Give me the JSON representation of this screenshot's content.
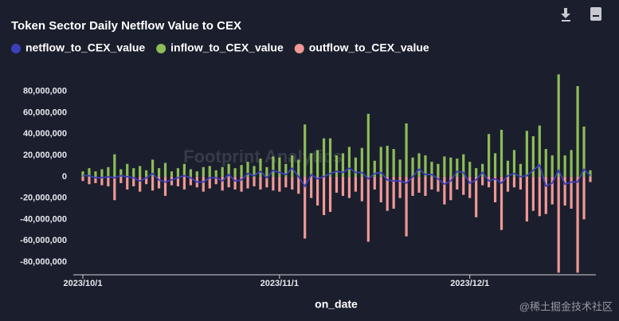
{
  "chart_data": {
    "type": "bar-line",
    "title": "Token Sector Daily Netflow Value to CEX",
    "xlabel": "on_date",
    "watermark": "Footprint Analytics",
    "credit": "@稀土掘金技术社区",
    "x": [
      "2023/10/1",
      "2023/10/2",
      "2023/10/3",
      "2023/10/4",
      "2023/10/5",
      "2023/10/6",
      "2023/10/7",
      "2023/10/8",
      "2023/10/9",
      "2023/10/10",
      "2023/10/11",
      "2023/10/12",
      "2023/10/13",
      "2023/10/14",
      "2023/10/15",
      "2023/10/16",
      "2023/10/17",
      "2023/10/18",
      "2023/10/19",
      "2023/10/20",
      "2023/10/21",
      "2023/10/22",
      "2023/10/23",
      "2023/10/24",
      "2023/10/25",
      "2023/10/26",
      "2023/10/27",
      "2023/10/28",
      "2023/10/29",
      "2023/10/30",
      "2023/10/31",
      "2023/11/1",
      "2023/11/2",
      "2023/11/3",
      "2023/11/4",
      "2023/11/5",
      "2023/11/6",
      "2023/11/7",
      "2023/11/8",
      "2023/11/9",
      "2023/11/10",
      "2023/11/11",
      "2023/11/12",
      "2023/11/13",
      "2023/11/14",
      "2023/11/15",
      "2023/11/16",
      "2023/11/17",
      "2023/11/18",
      "2023/11/19",
      "2023/11/20",
      "2023/11/21",
      "2023/11/22",
      "2023/11/23",
      "2023/11/24",
      "2023/11/25",
      "2023/11/26",
      "2023/11/27",
      "2023/11/28",
      "2023/11/29",
      "2023/11/30",
      "2023/12/1",
      "2023/12/2",
      "2023/12/3",
      "2023/12/4",
      "2023/12/5",
      "2023/12/6",
      "2023/12/7",
      "2023/12/8",
      "2023/12/9",
      "2023/12/10",
      "2023/12/11",
      "2023/12/12",
      "2023/12/13",
      "2023/12/14",
      "2023/12/15",
      "2023/12/16",
      "2023/12/17",
      "2023/12/18",
      "2023/12/19",
      "2023/12/20"
    ],
    "xticks": [
      "2023/10/1",
      "2023/11/1",
      "2023/12/1"
    ],
    "series": [
      {
        "name": "netflow_to_CEX_value",
        "color": "#3c3fb8",
        "kind": "line",
        "values": [
          1000000,
          1000000,
          -1000000,
          -1000000,
          0,
          -1000000,
          1000000,
          0,
          -1000000,
          -4000000,
          -1000000,
          3000000,
          -3000000,
          -5000000,
          -3000000,
          -1000000,
          1000000,
          -1000000,
          -5000000,
          -5000000,
          -1000000,
          -1000000,
          -4000000,
          2000000,
          -4000000,
          -3000000,
          3000000,
          1000000,
          5000000,
          -1000000,
          6000000,
          4000000,
          2000000,
          8000000,
          0,
          -9000000,
          2000000,
          -2000000,
          0,
          3000000,
          5000000,
          4000000,
          8000000,
          4000000,
          4000000,
          -2000000,
          3000000,
          4000000,
          -3000000,
          -4000000,
          -4000000,
          -6000000,
          0,
          7000000,
          2000000,
          2000000,
          -2000000,
          -7000000,
          -4000000,
          5000000,
          4000000,
          -6000000,
          -3000000,
          4000000,
          -4000000,
          -2000000,
          -6000000,
          1000000,
          3000000,
          0,
          1000000,
          6000000,
          11000000,
          -9000000,
          -6000000,
          6000000,
          -7000000,
          -5000000,
          -5000000,
          7000000,
          1000000
        ]
      },
      {
        "name": "inflow_to_CEX_value",
        "color": "#8dbd57",
        "kind": "bar",
        "values": [
          5000000,
          8000000,
          5000000,
          7000000,
          9000000,
          21000000,
          7000000,
          12000000,
          8000000,
          10000000,
          6000000,
          16000000,
          8000000,
          13000000,
          5000000,
          8000000,
          12000000,
          7000000,
          5000000,
          9000000,
          10000000,
          6000000,
          9000000,
          12000000,
          8000000,
          11000000,
          14000000,
          10000000,
          17000000,
          9000000,
          19000000,
          18000000,
          12000000,
          20000000,
          16000000,
          49000000,
          22000000,
          25000000,
          36000000,
          36000000,
          20000000,
          22000000,
          28000000,
          18000000,
          27000000,
          59000000,
          15000000,
          28000000,
          29000000,
          26000000,
          16000000,
          50000000,
          18000000,
          22000000,
          20000000,
          14000000,
          12000000,
          19000000,
          18000000,
          17000000,
          21000000,
          14000000,
          8000000,
          12000000,
          40000000,
          22000000,
          44000000,
          15000000,
          25000000,
          12000000,
          43000000,
          38000000,
          48000000,
          26000000,
          20000000,
          96000000,
          20000000,
          25000000,
          85000000,
          47000000,
          6000000
        ]
      },
      {
        "name": "outflow_to_CEX_value",
        "color": "#f09896",
        "kind": "bar",
        "values": [
          -4000000,
          -7000000,
          -6000000,
          -8000000,
          -9000000,
          -22000000,
          -6000000,
          -12000000,
          -9000000,
          -14000000,
          -7000000,
          -13000000,
          -11000000,
          -18000000,
          -8000000,
          -9000000,
          -12000000,
          -8000000,
          -10000000,
          -14000000,
          -11000000,
          -7000000,
          -13000000,
          -10000000,
          -12000000,
          -14000000,
          -11000000,
          -9000000,
          -12000000,
          -10000000,
          -13000000,
          -14000000,
          -10000000,
          -12000000,
          -16000000,
          -58000000,
          -20000000,
          -27000000,
          -36000000,
          -33000000,
          -15000000,
          -18000000,
          -20000000,
          -14000000,
          -23000000,
          -61000000,
          -12000000,
          -24000000,
          -32000000,
          -30000000,
          -20000000,
          -56000000,
          -18000000,
          -15000000,
          -18000000,
          -12000000,
          -14000000,
          -26000000,
          -22000000,
          -12000000,
          -17000000,
          -20000000,
          -38000000,
          -8000000,
          -10000000,
          -24000000,
          -50000000,
          -14000000,
          -10000000,
          -12000000,
          -42000000,
          -32000000,
          -37000000,
          -35000000,
          -26000000,
          -90000000,
          -27000000,
          -30000000,
          -90000000,
          -40000000,
          -5000000
        ]
      }
    ],
    "ylim": [
      -92000000,
      100000000
    ],
    "yticks": [
      {
        "value": -80000000,
        "label": "-80,000,000"
      },
      {
        "value": -60000000,
        "label": "-60,000,000"
      },
      {
        "value": -40000000,
        "label": "-40,000,000"
      },
      {
        "value": -20000000,
        "label": "-20,000,000"
      },
      0,
      {
        "value": 20000000,
        "label": "20,000,000"
      },
      {
        "value": 40000000,
        "label": "40,000,000"
      },
      {
        "value": 60000000,
        "label": "60,000,000"
      },
      {
        "value": 80000000,
        "label": "80,000,000"
      }
    ]
  }
}
